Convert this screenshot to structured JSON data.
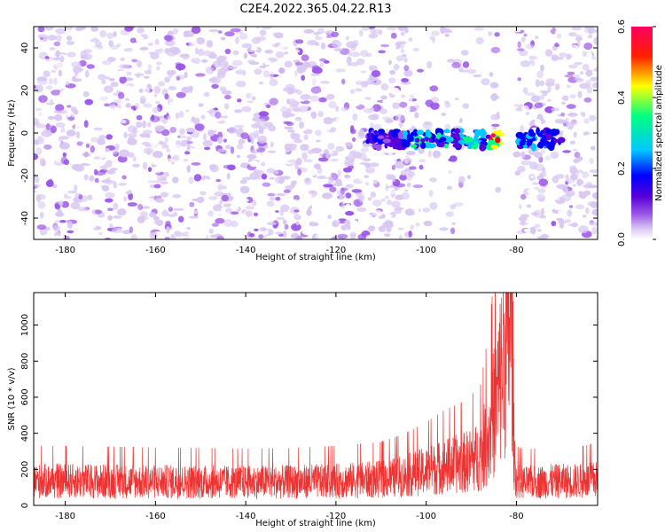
{
  "title": "C2E4.2022.365.04.22.R13",
  "colors": {
    "snr_line": "#ee3333",
    "colormap": [
      "#ffffff",
      "#d9c8f2",
      "#9b55e8",
      "#5a00d8",
      "#0000ff",
      "#00c8ff",
      "#00ff80",
      "#ffff00",
      "#ff0000",
      "#ff0060"
    ]
  },
  "chart_data": [
    {
      "type": "heatmap",
      "xlabel": "Height of straight line (km)",
      "ylabel": "Frequency (Hz)",
      "xlim": [
        -187,
        -62
      ],
      "ylim": [
        -50,
        50
      ],
      "x_ticks": [
        "-180",
        "-160",
        "-140",
        "-120",
        "-100",
        "-80"
      ],
      "y_ticks": [
        "-40",
        "-20",
        "0",
        "20",
        "40"
      ],
      "colorbar": {
        "label": "Normalized spectral amplitude",
        "range": [
          0.0,
          0.6
        ],
        "ticks": [
          "0.0",
          "0.2",
          "0.4",
          "0.6"
        ]
      },
      "background_noise_amplitude": [
        0.0,
        0.12
      ],
      "blank_band_x": [
        -84,
        -80
      ],
      "signal_band": {
        "x_range": [
          -113,
          -70
        ],
        "frequency_center_hz": -3,
        "peak_amplitude": 0.6,
        "peak_x": -83
      }
    },
    {
      "type": "line",
      "xlabel": "Height of straight line (km)",
      "ylabel": "SNR (10 * v/v)",
      "xlim": [
        -187,
        -62
      ],
      "ylim": [
        0,
        1180
      ],
      "x_ticks": [
        "-180",
        "-160",
        "-140",
        "-120",
        "-100",
        "-80"
      ],
      "y_ticks": [
        "0",
        "200",
        "400",
        "600",
        "800",
        "1000"
      ],
      "series": [
        {
          "x": [
            -187,
            -180,
            -170,
            -160,
            -150,
            -140,
            -130,
            -120,
            -110,
            -105,
            -100,
            -96,
            -92,
            -88,
            -86,
            -84,
            -83,
            -82,
            -81,
            -80.5,
            -80,
            -78,
            -75,
            -70,
            -65,
            -62
          ],
          "y": [
            150,
            150,
            148,
            146,
            145,
            143,
            145,
            150,
            160,
            180,
            210,
            240,
            260,
            300,
            450,
            700,
            900,
            1050,
            1180,
            300,
            150,
            140,
            145,
            150,
            150,
            160
          ]
        }
      ]
    }
  ]
}
